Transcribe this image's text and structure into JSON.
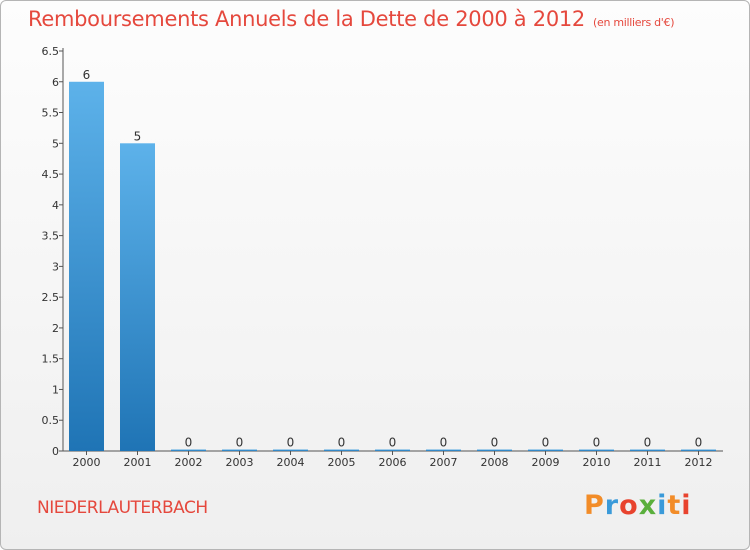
{
  "title": "Remboursements Annuels de la Dette de 2000 à 2012",
  "subtitle": "(en milliers d'€)",
  "commune": "NIEDERLAUTERBACH",
  "logo": {
    "text": "Proxiti",
    "letter_colors": [
      "#f28c28",
      "#3a9ad9",
      "#e8432e",
      "#5aaf3c",
      "#3a9ad9",
      "#f28c28",
      "#e8432e"
    ]
  },
  "colors": {
    "title": "#e5483d",
    "bar_top": "#5db2ea",
    "bar_bottom": "#1f74b5",
    "axis": "#555555"
  },
  "chart_data": {
    "type": "bar",
    "title": "Remboursements Annuels de la Dette de 2000 à 2012",
    "ylabel": "(en milliers d'€)",
    "xlabel": "",
    "categories": [
      "2000",
      "2001",
      "2002",
      "2003",
      "2004",
      "2005",
      "2006",
      "2007",
      "2008",
      "2009",
      "2010",
      "2011",
      "2012"
    ],
    "values": [
      6,
      5,
      0,
      0,
      0,
      0,
      0,
      0,
      0,
      0,
      0,
      0,
      0
    ],
    "data_labels": [
      "6",
      "5",
      "0",
      "0",
      "0",
      "0",
      "0",
      "0",
      "0",
      "0",
      "0",
      "0",
      "0"
    ],
    "ylim": [
      0,
      6.5
    ],
    "yticks": [
      0,
      0.5,
      1,
      1.5,
      2,
      2.5,
      3,
      3.5,
      4,
      4.5,
      5,
      5.5,
      6,
      6.5
    ],
    "ytick_labels": [
      "0",
      "0.5",
      "1",
      "1.5",
      "2",
      "2.5",
      "3",
      "3.5",
      "4",
      "4.5",
      "5",
      "5.5",
      "6",
      "6.5"
    ],
    "grid": false
  }
}
